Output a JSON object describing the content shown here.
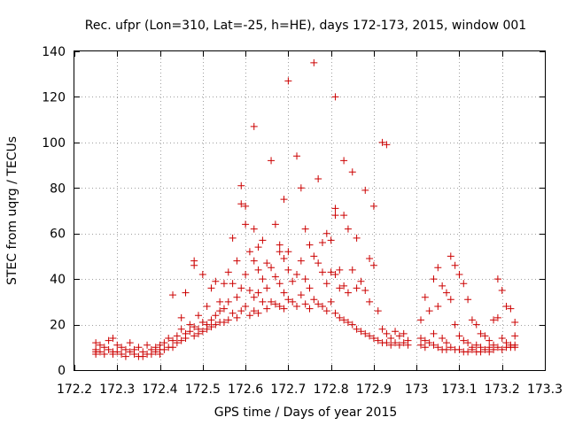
{
  "chart_data": {
    "type": "scatter",
    "title": "Rec. ufpr (Lon=310, Lat=-25, h=HE), days 172-173, 2015, window 001",
    "xlabel": "GPS time / Days of year 2015",
    "ylabel": "STEC from uqrg / TECUs",
    "xlim": [
      172.2,
      173.3
    ],
    "ylim": [
      0,
      140
    ],
    "x_ticks": [
      "172.2",
      "172.3",
      "172.4",
      "172.5",
      "172.6",
      "172.7",
      "172.8",
      "172.9",
      "173",
      "173.1",
      "173.2",
      "173.3"
    ],
    "y_ticks": [
      "0",
      "20",
      "40",
      "60",
      "80",
      "100",
      "120",
      "140"
    ],
    "grid": true,
    "marker": "plus",
    "color": "#cc0000",
    "series": [
      {
        "points": [
          [
            172.25,
            12
          ],
          [
            172.25,
            9
          ],
          [
            172.25,
            8
          ],
          [
            172.25,
            7
          ],
          [
            172.26,
            11
          ],
          [
            172.26,
            8
          ],
          [
            172.27,
            10
          ],
          [
            172.27,
            7
          ],
          [
            172.28,
            13
          ],
          [
            172.28,
            9
          ],
          [
            172.29,
            14
          ],
          [
            172.29,
            8
          ],
          [
            172.29,
            7
          ],
          [
            172.3,
            11
          ],
          [
            172.3,
            8
          ],
          [
            172.31,
            10
          ],
          [
            172.31,
            7
          ],
          [
            172.32,
            9
          ],
          [
            172.32,
            6
          ],
          [
            172.33,
            12
          ],
          [
            172.33,
            8
          ],
          [
            172.34,
            9
          ],
          [
            172.34,
            7
          ],
          [
            172.35,
            6
          ],
          [
            172.35,
            10
          ],
          [
            172.36,
            8
          ],
          [
            172.36,
            6
          ],
          [
            172.37,
            11
          ],
          [
            172.37,
            7
          ],
          [
            172.38,
            9
          ],
          [
            172.38,
            7
          ],
          [
            172.39,
            10
          ],
          [
            172.39,
            8
          ],
          [
            172.4,
            11
          ],
          [
            172.4,
            7
          ],
          [
            172.4,
            9
          ],
          [
            172.41,
            12
          ],
          [
            172.41,
            9
          ],
          [
            172.42,
            14
          ],
          [
            172.42,
            10
          ],
          [
            172.43,
            33
          ],
          [
            172.43,
            13
          ],
          [
            172.43,
            10
          ],
          [
            172.44,
            15
          ],
          [
            172.44,
            12
          ],
          [
            172.45,
            23
          ],
          [
            172.45,
            18
          ],
          [
            172.45,
            13
          ],
          [
            172.46,
            34
          ],
          [
            172.46,
            16
          ],
          [
            172.46,
            14
          ],
          [
            172.47,
            17
          ],
          [
            172.47,
            20
          ],
          [
            172.48,
            48
          ],
          [
            172.48,
            46
          ],
          [
            172.48,
            19
          ],
          [
            172.48,
            15
          ],
          [
            172.49,
            24
          ],
          [
            172.49,
            18
          ],
          [
            172.49,
            16
          ],
          [
            172.5,
            42
          ],
          [
            172.5,
            21
          ],
          [
            172.5,
            17
          ],
          [
            172.51,
            28
          ],
          [
            172.51,
            20
          ],
          [
            172.51,
            18
          ],
          [
            172.52,
            36
          ],
          [
            172.52,
            22
          ],
          [
            172.52,
            19
          ],
          [
            172.53,
            39
          ],
          [
            172.53,
            24
          ],
          [
            172.53,
            20
          ],
          [
            172.54,
            30
          ],
          [
            172.54,
            26
          ],
          [
            172.54,
            21
          ],
          [
            172.55,
            38
          ],
          [
            172.55,
            27
          ],
          [
            172.55,
            21
          ],
          [
            172.56,
            43
          ],
          [
            172.56,
            30
          ],
          [
            172.56,
            22
          ],
          [
            172.57,
            58
          ],
          [
            172.57,
            38
          ],
          [
            172.57,
            25
          ],
          [
            172.58,
            48
          ],
          [
            172.58,
            32
          ],
          [
            172.58,
            23
          ],
          [
            172.59,
            81
          ],
          [
            172.59,
            73
          ],
          [
            172.59,
            36
          ],
          [
            172.59,
            26
          ],
          [
            172.6,
            72
          ],
          [
            172.6,
            64
          ],
          [
            172.6,
            42
          ],
          [
            172.6,
            28
          ],
          [
            172.61,
            52
          ],
          [
            172.61,
            35
          ],
          [
            172.61,
            24
          ],
          [
            172.62,
            107
          ],
          [
            172.62,
            62
          ],
          [
            172.62,
            48
          ],
          [
            172.62,
            32
          ],
          [
            172.62,
            26
          ],
          [
            172.63,
            54
          ],
          [
            172.63,
            44
          ],
          [
            172.63,
            34
          ],
          [
            172.63,
            25
          ],
          [
            172.64,
            57
          ],
          [
            172.64,
            40
          ],
          [
            172.64,
            30
          ],
          [
            172.65,
            47
          ],
          [
            172.65,
            36
          ],
          [
            172.65,
            27
          ],
          [
            172.66,
            92
          ],
          [
            172.66,
            45
          ],
          [
            172.66,
            30
          ],
          [
            172.67,
            64
          ],
          [
            172.67,
            41
          ],
          [
            172.67,
            29
          ],
          [
            172.68,
            55
          ],
          [
            172.68,
            52
          ],
          [
            172.68,
            38
          ],
          [
            172.68,
            28
          ],
          [
            172.69,
            75
          ],
          [
            172.69,
            49
          ],
          [
            172.69,
            34
          ],
          [
            172.69,
            27
          ],
          [
            172.7,
            127
          ],
          [
            172.7,
            52
          ],
          [
            172.7,
            44
          ],
          [
            172.7,
            31
          ],
          [
            172.71,
            39
          ],
          [
            172.71,
            30
          ],
          [
            172.72,
            94
          ],
          [
            172.72,
            42
          ],
          [
            172.72,
            28
          ],
          [
            172.73,
            80
          ],
          [
            172.73,
            48
          ],
          [
            172.73,
            33
          ],
          [
            172.74,
            62
          ],
          [
            172.74,
            40
          ],
          [
            172.74,
            29
          ],
          [
            172.75,
            55
          ],
          [
            172.75,
            36
          ],
          [
            172.75,
            27
          ],
          [
            172.76,
            135
          ],
          [
            172.76,
            50
          ],
          [
            172.76,
            31
          ],
          [
            172.77,
            84
          ],
          [
            172.77,
            47
          ],
          [
            172.77,
            29
          ],
          [
            172.78,
            56
          ],
          [
            172.78,
            43
          ],
          [
            172.78,
            28
          ],
          [
            172.79,
            60
          ],
          [
            172.79,
            38
          ],
          [
            172.79,
            26
          ],
          [
            172.8,
            57
          ],
          [
            172.8,
            43
          ],
          [
            172.8,
            30
          ],
          [
            172.81,
            120
          ],
          [
            172.81,
            71
          ],
          [
            172.81,
            68
          ],
          [
            172.81,
            42
          ],
          [
            172.81,
            25
          ],
          [
            172.82,
            44
          ],
          [
            172.82,
            36
          ],
          [
            172.82,
            23
          ],
          [
            172.83,
            92
          ],
          [
            172.83,
            68
          ],
          [
            172.83,
            37
          ],
          [
            172.83,
            22
          ],
          [
            172.84,
            62
          ],
          [
            172.84,
            34
          ],
          [
            172.84,
            21
          ],
          [
            172.85,
            87
          ],
          [
            172.85,
            44
          ],
          [
            172.85,
            20
          ],
          [
            172.86,
            58
          ],
          [
            172.86,
            36
          ],
          [
            172.86,
            18
          ],
          [
            172.87,
            39
          ],
          [
            172.87,
            17
          ],
          [
            172.88,
            79
          ],
          [
            172.88,
            35
          ],
          [
            172.88,
            16
          ],
          [
            172.89,
            49
          ],
          [
            172.89,
            30
          ],
          [
            172.89,
            15
          ],
          [
            172.9,
            72
          ],
          [
            172.9,
            46
          ],
          [
            172.9,
            14
          ],
          [
            172.91,
            26
          ],
          [
            172.91,
            13
          ],
          [
            172.92,
            100
          ],
          [
            172.92,
            18
          ],
          [
            172.92,
            12
          ],
          [
            172.93,
            99
          ],
          [
            172.93,
            16
          ],
          [
            172.93,
            12
          ],
          [
            172.94,
            14
          ],
          [
            172.94,
            11
          ],
          [
            172.95,
            17
          ],
          [
            172.95,
            12
          ],
          [
            172.96,
            15
          ],
          [
            172.96,
            11
          ],
          [
            172.97,
            16
          ],
          [
            172.97,
            12
          ],
          [
            172.98,
            13
          ],
          [
            172.98,
            11
          ],
          [
            173.01,
            22
          ],
          [
            173.01,
            14
          ],
          [
            173.01,
            11
          ],
          [
            173.02,
            32
          ],
          [
            173.02,
            13
          ],
          [
            173.02,
            10
          ],
          [
            173.03,
            26
          ],
          [
            173.03,
            12
          ],
          [
            173.04,
            40
          ],
          [
            173.04,
            16
          ],
          [
            173.04,
            11
          ],
          [
            173.05,
            45
          ],
          [
            173.05,
            28
          ],
          [
            173.05,
            10
          ],
          [
            173.06,
            37
          ],
          [
            173.06,
            14
          ],
          [
            173.06,
            9
          ],
          [
            173.07,
            34
          ],
          [
            173.07,
            12
          ],
          [
            173.07,
            9
          ],
          [
            173.08,
            50
          ],
          [
            173.08,
            31
          ],
          [
            173.08,
            10
          ],
          [
            173.09,
            46
          ],
          [
            173.09,
            20
          ],
          [
            173.09,
            9
          ],
          [
            173.1,
            42
          ],
          [
            173.1,
            15
          ],
          [
            173.1,
            9
          ],
          [
            173.11,
            38
          ],
          [
            173.11,
            13
          ],
          [
            173.11,
            8
          ],
          [
            173.12,
            31
          ],
          [
            173.12,
            12
          ],
          [
            173.12,
            8
          ],
          [
            173.13,
            22
          ],
          [
            173.13,
            10
          ],
          [
            173.13,
            9
          ],
          [
            173.14,
            20
          ],
          [
            173.14,
            11
          ],
          [
            173.14,
            8
          ],
          [
            173.15,
            16
          ],
          [
            173.15,
            10
          ],
          [
            173.15,
            8
          ],
          [
            173.16,
            15
          ],
          [
            173.16,
            9
          ],
          [
            173.17,
            13
          ],
          [
            173.17,
            10
          ],
          [
            173.17,
            8
          ],
          [
            173.18,
            22
          ],
          [
            173.18,
            11
          ],
          [
            173.18,
            9
          ],
          [
            173.19,
            40
          ],
          [
            173.19,
            23
          ],
          [
            173.19,
            10
          ],
          [
            173.2,
            35
          ],
          [
            173.2,
            14
          ],
          [
            173.2,
            9
          ],
          [
            173.21,
            28
          ],
          [
            173.21,
            12
          ],
          [
            173.21,
            10
          ],
          [
            173.22,
            27
          ],
          [
            173.22,
            11
          ],
          [
            173.22,
            10
          ],
          [
            173.23,
            21
          ],
          [
            173.23,
            15
          ],
          [
            173.23,
            11
          ],
          [
            173.23,
            10
          ]
        ]
      }
    ]
  }
}
